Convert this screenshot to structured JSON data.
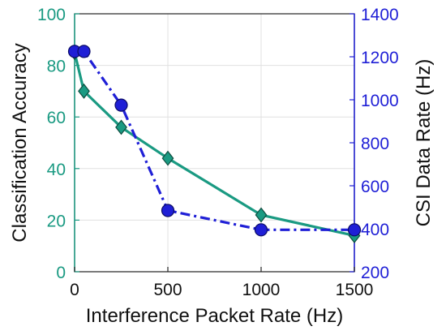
{
  "chart_data": {
    "type": "line",
    "xlabel": "Interference Packet Rate (Hz)",
    "ylabel_left": "Classification Accuracy",
    "ylabel_right": "CSI Data Rate (Hz)",
    "xlim": [
      0,
      1500
    ],
    "ylim_left": [
      0,
      100
    ],
    "ylim_right": [
      200,
      1400
    ],
    "xticks": [
      0,
      500,
      1000,
      1500
    ],
    "yticks_left": [
      0,
      20,
      40,
      60,
      80,
      100
    ],
    "yticks_right": [
      200,
      400,
      600,
      800,
      1000,
      1200,
      1400
    ],
    "grid": true,
    "series": [
      {
        "axis": "left",
        "color": "#1a9a82",
        "marker": "diamond",
        "line_style": "solid",
        "x": [
          0,
          50,
          250,
          500,
          1000,
          1500
        ],
        "values": [
          85,
          70,
          56,
          44,
          22,
          14
        ]
      },
      {
        "axis": "right",
        "color": "#1f1fd6",
        "marker": "circle",
        "line_style": "dash-dot",
        "x": [
          0,
          50,
          250,
          500,
          1000,
          1500
        ],
        "values": [
          1225,
          1225,
          975,
          485,
          395,
          395
        ]
      }
    ]
  },
  "colors": {
    "left_axis": "#1a9a82",
    "right_axis": "#1f1fd6",
    "grid": "#e0e0e0",
    "text": "#111111"
  }
}
